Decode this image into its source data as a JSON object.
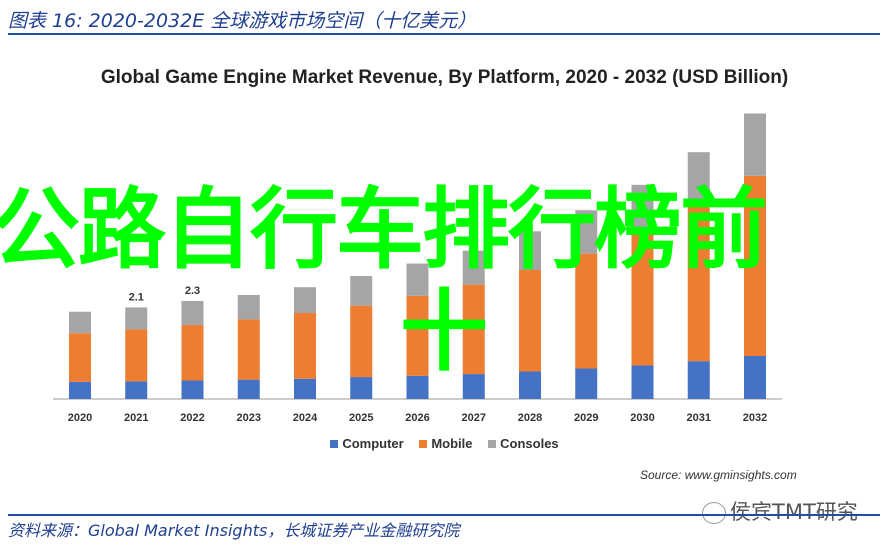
{
  "figure_title": "图表 16:  2020-2032E 全球游戏市场空间（十亿美元）",
  "chart_data": {
    "type": "bar",
    "stacked": true,
    "title": "Global Game Engine Market Revenue, By Platform, 2020 - 2032 (USD Billion)",
    "xlabel": "",
    "ylabel": "",
    "ylim": [
      0,
      7
    ],
    "grid": false,
    "legend_position": "bottom",
    "categories": [
      "2020",
      "2021",
      "2022",
      "2023",
      "2024",
      "2025",
      "2026",
      "2027",
      "2028",
      "2029",
      "2030",
      "2031",
      "2032"
    ],
    "series": [
      {
        "name": "Computer",
        "color": "#4472c4",
        "values": [
          0.4,
          0.41,
          0.43,
          0.45,
          0.47,
          0.51,
          0.54,
          0.58,
          0.64,
          0.71,
          0.78,
          0.88,
          1.0
        ]
      },
      {
        "name": "Mobile",
        "color": "#ed7d31",
        "values": [
          1.13,
          1.21,
          1.29,
          1.4,
          1.53,
          1.66,
          1.86,
          2.08,
          2.36,
          2.67,
          3.09,
          3.6,
          4.19
        ]
      },
      {
        "name": "Consoles",
        "color": "#a5a5a5",
        "values": [
          0.5,
          0.51,
          0.56,
          0.57,
          0.6,
          0.69,
          0.75,
          0.79,
          0.9,
          1.01,
          1.11,
          1.26,
          1.45
        ]
      }
    ],
    "data_labels": [
      {
        "category": "2021",
        "text": "2.1"
      },
      {
        "category": "2022",
        "text": "2.3"
      }
    ],
    "source": "Source: www.gminsights.com"
  },
  "overlay_text": {
    "line1": "公路自行车排行榜前",
    "line2": "十"
  },
  "watermark": "侯宾TMT研究",
  "footer": "资料来源：Global Market Insights，长城证券产业金融研究院"
}
